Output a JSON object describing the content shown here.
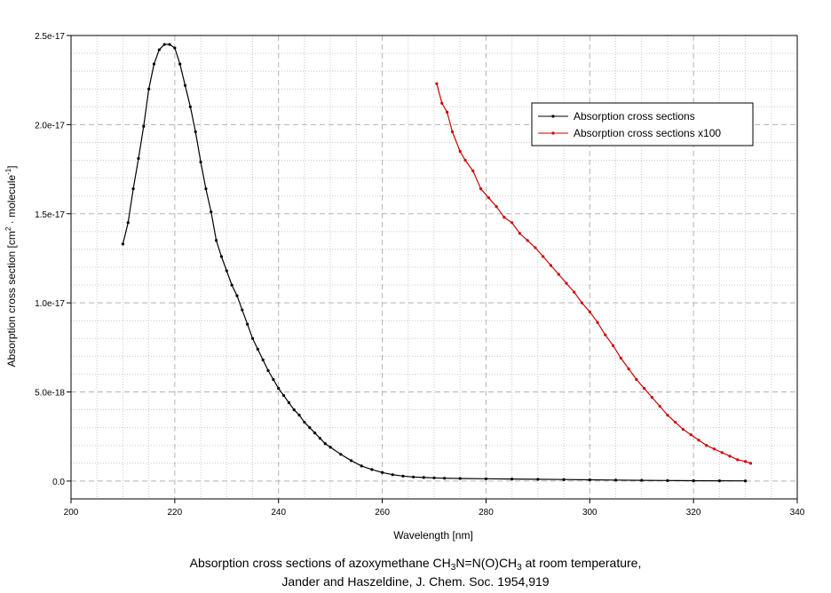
{
  "chart_data": {
    "type": "line",
    "xlabel": "Wavelength [nm]",
    "ylabel": "Absorption cross section [cm² · molecule⁻¹]",
    "ylabel_parts": {
      "pre": "Absorption cross section [cm",
      "sup1": "2",
      "mid": " · molecule",
      "sup2": "-1",
      "post": "]"
    },
    "xlim": [
      200,
      340
    ],
    "ylim": [
      -1e-18,
      2.5e-17
    ],
    "xticks": [
      200,
      220,
      240,
      260,
      280,
      300,
      320,
      340
    ],
    "yticks": [
      0.0,
      5e-18,
      1e-17,
      1.5e-17,
      2e-17,
      2.5e-17
    ],
    "xtick_labels": [
      "200",
      "220",
      "240",
      "260",
      "280",
      "300",
      "320",
      "340"
    ],
    "ytick_labels": [
      "0.0",
      "5.0e-18",
      "1.0e-17",
      "1.5e-17",
      "2.0e-17",
      "2.5e-17"
    ],
    "grid": true,
    "legend_position": "top-right",
    "series": [
      {
        "name": "Absorption cross sections",
        "color": "#000000",
        "x": [
          210,
          211,
          212,
          213,
          214,
          215,
          216,
          217,
          218,
          219,
          220,
          221,
          222,
          223,
          224,
          225,
          226,
          227,
          228,
          229,
          230,
          231,
          232,
          233,
          234,
          235,
          236,
          237,
          238,
          239,
          240,
          241,
          242,
          243,
          244,
          245,
          246,
          247,
          248,
          249,
          250,
          252,
          254,
          256,
          258,
          260,
          262,
          264,
          266,
          268,
          270,
          272,
          275,
          280,
          285,
          290,
          295,
          300,
          305,
          310,
          315,
          320,
          325,
          330
        ],
        "y": [
          1.33e-17,
          1.45e-17,
          1.64e-17,
          1.81e-17,
          1.99e-17,
          2.2e-17,
          2.34e-17,
          2.42e-17,
          2.45e-17,
          2.45e-17,
          2.43e-17,
          2.34e-17,
          2.22e-17,
          2.1e-17,
          1.96e-17,
          1.79e-17,
          1.64e-17,
          1.51e-17,
          1.35e-17,
          1.26e-17,
          1.18e-17,
          1.1e-17,
          1.04e-17,
          9.6e-18,
          8.8e-18,
          8e-18,
          7.4e-18,
          6.8e-18,
          6.2e-18,
          5.7e-18,
          5.2e-18,
          4.8e-18,
          4.4e-18,
          4e-18,
          3.7e-18,
          3.3e-18,
          3e-18,
          2.7e-18,
          2.4e-18,
          2.1e-18,
          1.9e-18,
          1.5e-18,
          1.15e-18,
          8.5e-19,
          6.5e-19,
          4.8e-19,
          3.6e-19,
          2.8e-19,
          2.3e-19,
          2e-19,
          1.8e-19,
          1.6e-19,
          1.45e-19,
          1.3e-19,
          1.15e-19,
          1e-19,
          8.5e-20,
          7e-20,
          5.5e-20,
          4e-20,
          3e-20,
          2e-20,
          1.5e-20,
          1e-20
        ]
      },
      {
        "name": "Absorption cross sections x100",
        "color": "#cc0000",
        "x": [
          270.5,
          271.5,
          272.5,
          273.5,
          275,
          276,
          277.5,
          279,
          280.5,
          282,
          283.5,
          285,
          286.5,
          288,
          289.5,
          291,
          292.5,
          294,
          295.5,
          297,
          298.5,
          300,
          301.5,
          303,
          304.5,
          306,
          307.5,
          309,
          310.5,
          312,
          313.5,
          315,
          316.5,
          318,
          319.5,
          321,
          322.5,
          324,
          325.5,
          327,
          328.5,
          330,
          331
        ],
        "y": [
          2.23e-17,
          2.12e-17,
          2.07e-17,
          1.96e-17,
          1.85e-17,
          1.8e-17,
          1.74e-17,
          1.64e-17,
          1.59e-17,
          1.54e-17,
          1.48e-17,
          1.45e-17,
          1.39e-17,
          1.35e-17,
          1.31e-17,
          1.26e-17,
          1.21e-17,
          1.16e-17,
          1.11e-17,
          1.06e-17,
          1e-17,
          9.5e-18,
          8.9e-18,
          8.2e-18,
          7.6e-18,
          6.9e-18,
          6.3e-18,
          5.7e-18,
          5.2e-18,
          4.7e-18,
          4.2e-18,
          3.7e-18,
          3.3e-18,
          2.9e-18,
          2.6e-18,
          2.3e-18,
          2e-18,
          1.8e-18,
          1.6e-18,
          1.4e-18,
          1.2e-18,
          1.1e-18,
          1e-18
        ]
      }
    ]
  },
  "caption": {
    "line1_pre": "Absorption cross sections of azoxymethane CH",
    "line1_sub1": "3",
    "line1_mid": "N=N(O)CH",
    "line1_sub2": "3",
    "line1_post": " at room temperature,",
    "line2": "Jander and Haszeldine, J. Chem. Soc. 1954,919"
  }
}
